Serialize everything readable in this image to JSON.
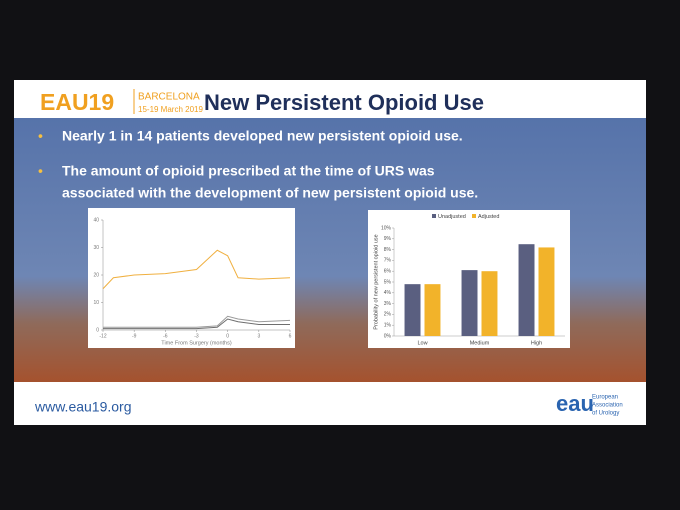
{
  "header": {
    "logo": "EAU19",
    "location": "BARCELONA",
    "dates": "15-19 March 2019",
    "title": "New Persistent Opioid Use"
  },
  "bullets": [
    [
      "Nearly 1 in 14 patients developed new persistent opioid use."
    ],
    [
      "The amount of opioid prescribed at the time of URS was",
      "associated with the development of new persistent opioid use."
    ]
  ],
  "chart_data": [
    {
      "type": "line",
      "x_label": "Time From Surgery (months)",
      "x": [
        -12,
        -11,
        -9,
        -6,
        -3,
        -1,
        0,
        1,
        3,
        6
      ],
      "series": [
        {
          "color": "#f0b040",
          "values": [
            15,
            19,
            20,
            20.5,
            22,
            29,
            27,
            19,
            18.5,
            19
          ]
        },
        {
          "color": "#9a9a9a",
          "values": [
            1,
            1,
            1,
            1,
            1,
            1.5,
            5,
            4,
            3,
            3.5
          ]
        },
        {
          "color": "#6e6e6e",
          "values": [
            0.5,
            0.5,
            0.5,
            0.5,
            0.5,
            1,
            4,
            3,
            2,
            2
          ]
        }
      ],
      "xlim": [
        -12,
        6
      ],
      "xticks": [
        -12,
        -9,
        -6,
        -3,
        0,
        3,
        6
      ],
      "ylim": [
        0,
        40
      ],
      "yticks": [
        0,
        10,
        20,
        30,
        40
      ]
    },
    {
      "type": "bar",
      "y_label": "Probability of new persistent opioid use",
      "categories": [
        "Low",
        "Medium",
        "High"
      ],
      "series": [
        {
          "name": "Unadjusted",
          "color": "#5a5f80",
          "values": [
            4.8,
            6.1,
            8.5
          ]
        },
        {
          "name": "Adjusted",
          "color": "#f2b32a",
          "values": [
            4.8,
            6.0,
            8.2
          ]
        }
      ],
      "ylim": [
        0,
        10
      ],
      "yticks": [
        {
          "value": 0,
          "label": "0%"
        },
        {
          "value": 1,
          "label": "1%"
        },
        {
          "value": 2,
          "label": "2%"
        },
        {
          "value": 3,
          "label": "3%"
        },
        {
          "value": 4,
          "label": "4%"
        },
        {
          "value": 5,
          "label": "5%"
        },
        {
          "value": 6,
          "label": "6%"
        },
        {
          "value": 7,
          "label": "7%"
        },
        {
          "value": 8,
          "label": "8%"
        },
        {
          "value": 9,
          "label": "9%"
        },
        {
          "value": 10,
          "label": "10%"
        }
      ]
    }
  ],
  "footer": {
    "url": "www.eau19.org",
    "logo": "eau",
    "org": [
      "European",
      "Association",
      "of Urology"
    ]
  }
}
